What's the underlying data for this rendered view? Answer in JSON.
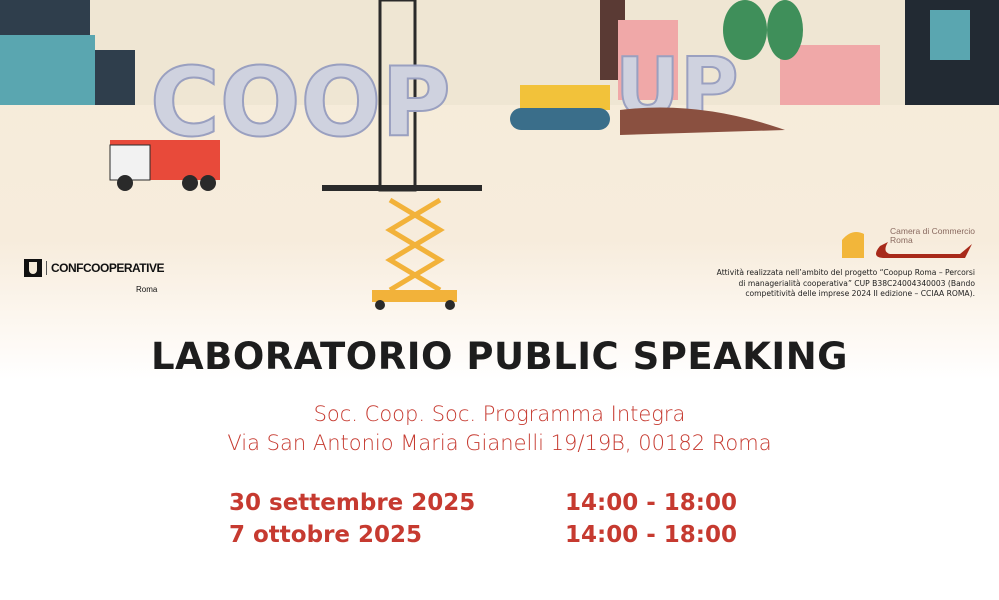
{
  "logos": {
    "confcooperative": {
      "name": "CONFCOOPERATIVE",
      "sub": "Roma"
    },
    "camera_commercio": {
      "line1": "Camera di Commercio",
      "line2": "Roma"
    }
  },
  "illustration": {
    "letters_left": "COOP",
    "letters_right": "UP"
  },
  "disclaimer": [
    "Attività realizzata nell’ambito del progetto “Coopup Roma – Percorsi",
    "di managerialità cooperativa” CUP B38C24004340003 (Bando",
    "competitività delle imprese 2024 II edizione – CCIAA ROMA)."
  ],
  "title": "LABORATORIO PUBLIC SPEAKING",
  "venue": {
    "name": "Soc. Coop. Soc. Programma Integra",
    "address": "Via San Antonio Maria Gianelli 19/19B, 00182 Roma"
  },
  "sessions": [
    {
      "date": "30 settembre 2025",
      "time": "14:00 - 18:00"
    },
    {
      "date": "7 ottobre 2025",
      "time": "14:00 - 18:00"
    }
  ],
  "colors": {
    "accent": "#c63a30",
    "title": "#1d1d1d",
    "background": "#f5ebd9"
  }
}
